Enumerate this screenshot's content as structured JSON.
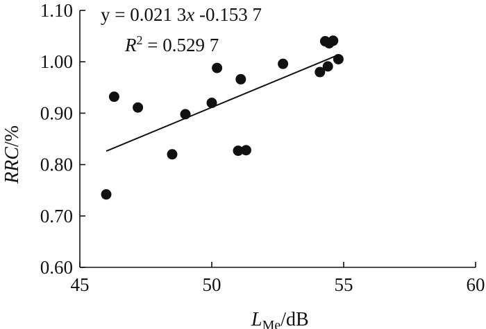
{
  "chart_data": {
    "type": "scatter",
    "xlabel": {
      "main": "L",
      "sub": "Me",
      "unit": "/dB"
    },
    "ylabel": {
      "main": "RRC",
      "unit": "/%"
    },
    "xlim": [
      45,
      60
    ],
    "ylim": [
      0.6,
      1.1
    ],
    "x_ticks": [
      45,
      50,
      55,
      60
    ],
    "y_ticks": [
      0.6,
      0.7,
      0.8,
      0.9,
      1.0,
      1.1
    ],
    "x_tick_labels": [
      "45",
      "50",
      "55",
      "60"
    ],
    "y_tick_labels": [
      "0.60",
      "0.70",
      "0.80",
      "0.90",
      "1.00",
      "1.10"
    ],
    "grid": false,
    "points": [
      {
        "x": 46.0,
        "y": 0.742
      },
      {
        "x": 46.3,
        "y": 0.932
      },
      {
        "x": 47.2,
        "y": 0.911
      },
      {
        "x": 48.5,
        "y": 0.82
      },
      {
        "x": 49.0,
        "y": 0.898
      },
      {
        "x": 50.0,
        "y": 0.92
      },
      {
        "x": 50.2,
        "y": 0.988
      },
      {
        "x": 51.0,
        "y": 0.827
      },
      {
        "x": 51.1,
        "y": 0.966
      },
      {
        "x": 51.3,
        "y": 0.828
      },
      {
        "x": 52.7,
        "y": 0.996
      },
      {
        "x": 54.1,
        "y": 0.98
      },
      {
        "x": 54.3,
        "y": 1.04
      },
      {
        "x": 54.4,
        "y": 0.991
      },
      {
        "x": 54.45,
        "y": 1.036
      },
      {
        "x": 54.6,
        "y": 1.041
      },
      {
        "x": 54.8,
        "y": 1.005
      }
    ],
    "fit_line": {
      "slope": 0.0213,
      "intercept": -0.1537,
      "x_range": [
        46.0,
        54.8
      ]
    },
    "annotations": {
      "equation": {
        "prefix": "y = 0.021 3",
        "var": "x",
        "suffix": " -0.153 7"
      },
      "r_squared": {
        "label": "R",
        "sup": "2",
        "value": " = 0.529 7"
      }
    }
  }
}
